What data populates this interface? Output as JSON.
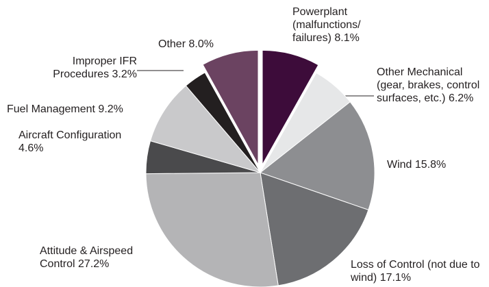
{
  "chart_data": {
    "type": "pie",
    "categories": [
      "Powerplant (malfunctions/ failures)",
      "Other Mechanical (gear, brakes, control surfaces, etc.)",
      "Wind",
      "Loss of Control (not due to wind)",
      "Attitude & Airspeed Control",
      "Aircraft Configuration",
      "Fuel Management",
      "Improper IFR Procedures",
      "Other"
    ],
    "values": [
      8.1,
      6.2,
      15.8,
      17.1,
      27.2,
      4.6,
      9.2,
      3.2,
      8.0
    ],
    "value_labels": [
      "8.1%",
      "6.2%",
      "15.8%",
      "17.1%",
      "27.2%",
      "4.6%",
      "9.2%",
      "3.2%",
      "8.0%"
    ],
    "colors": [
      "#3d0c3a",
      "#e6e7e8",
      "#8d8e91",
      "#6d6e71",
      "#b4b4b6",
      "#4a4a4c",
      "#c9c9cb",
      "#231f20",
      "#6b4361"
    ],
    "exploded": [
      true,
      false,
      false,
      false,
      false,
      false,
      false,
      false,
      true
    ]
  }
}
